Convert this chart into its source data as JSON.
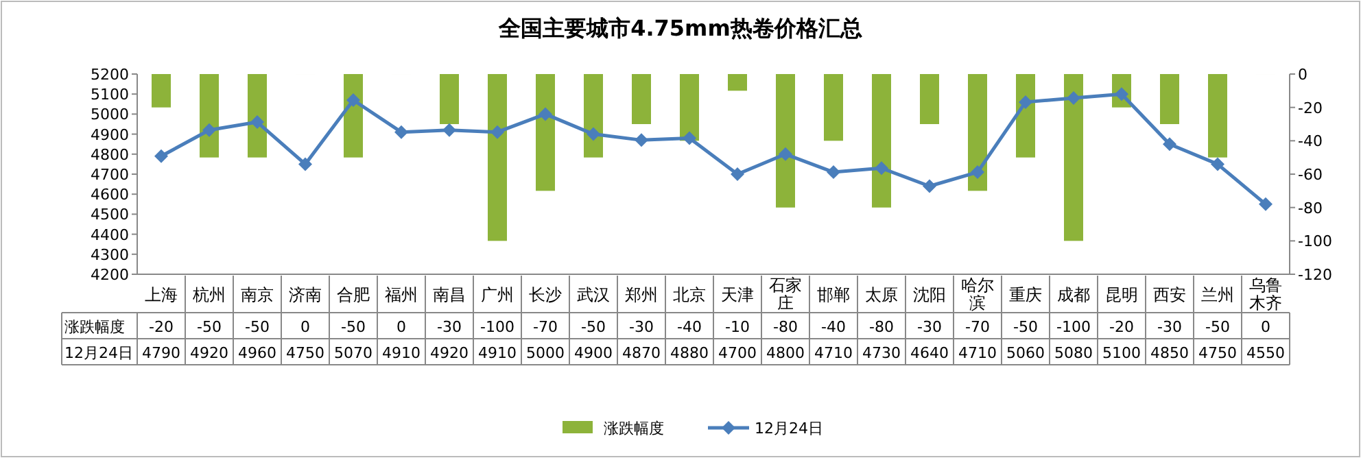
{
  "chart_data": {
    "type": "bar",
    "title": "全国主要城市4.75mm热卷价格汇总",
    "categories": [
      "上海",
      "杭州",
      "南京",
      "济南",
      "合肥",
      "福州",
      "南昌",
      "广州",
      "长沙",
      "武汉",
      "郑州",
      "北京",
      "天津",
      "石家庄",
      "邯郸",
      "太原",
      "沈阳",
      "哈尔滨",
      "重庆",
      "成都",
      "昆明",
      "西安",
      "兰州",
      "乌鲁木齐"
    ],
    "series": [
      {
        "name": "涨跌幅度",
        "axis": "y2",
        "color": "#8db33a",
        "values": [
          -20,
          -50,
          -50,
          0,
          -50,
          0,
          -30,
          -100,
          -70,
          -50,
          -30,
          -40,
          -10,
          -80,
          -40,
          -80,
          -30,
          -70,
          -50,
          -100,
          -20,
          -30,
          -50,
          0
        ]
      },
      {
        "name": "12月24日",
        "type": "line",
        "axis": "y",
        "color": "#4a7ebb",
        "values": [
          4790,
          4920,
          4960,
          4750,
          5070,
          4910,
          4920,
          4910,
          5000,
          4900,
          4870,
          4880,
          4700,
          4800,
          4710,
          4730,
          4640,
          4710,
          5060,
          5080,
          5100,
          4850,
          4750,
          4550
        ]
      }
    ],
    "ylim": [
      4200,
      5200
    ],
    "yticks": [
      4200,
      4300,
      4400,
      4500,
      4600,
      4700,
      4800,
      4900,
      5000,
      5100,
      5200
    ],
    "y2lim": [
      -120,
      0
    ],
    "y2ticks": [
      -120,
      -100,
      -80,
      -60,
      -40,
      -20,
      0
    ],
    "marker": "diamond",
    "legend": "bottom",
    "data_labels": true
  }
}
